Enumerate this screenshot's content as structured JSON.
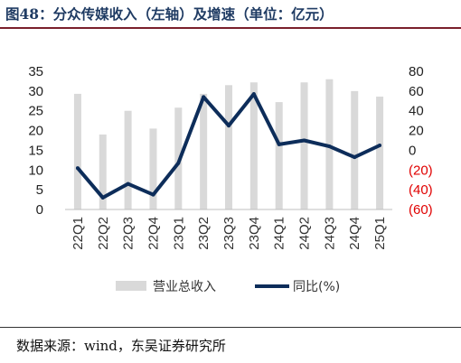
{
  "title": "图48：分众传媒收入（左轴）及增速（单位：亿元）",
  "source": "数据来源：wind，东吴证券研究所",
  "chart_data": {
    "type": "bar+line",
    "categories": [
      "22Q1",
      "22Q2",
      "22Q3",
      "22Q4",
      "23Q1",
      "23Q2",
      "23Q3",
      "23Q4",
      "24Q1",
      "24Q2",
      "24Q3",
      "24Q4",
      "25Q1"
    ],
    "series": [
      {
        "name": "营业总收入",
        "type": "bar",
        "axis": "left",
        "color": "#d9d9d9",
        "values": [
          29.3,
          19.0,
          25.0,
          20.5,
          25.8,
          29.3,
          31.5,
          32.2,
          27.2,
          32.2,
          33.0,
          30.0,
          28.6
        ]
      },
      {
        "name": "同比(%)",
        "type": "line",
        "axis": "right",
        "color": "#0d2d5a",
        "values": [
          -18,
          -48,
          -34,
          -45,
          -13,
          54,
          25,
          57,
          6,
          10,
          4,
          -7,
          5
        ]
      }
    ],
    "left_axis": {
      "min": 0,
      "max": 35,
      "ticks": [
        "0",
        "5",
        "10",
        "15",
        "20",
        "25",
        "30",
        "35"
      ]
    },
    "right_axis": {
      "min": -60,
      "max": 80,
      "ticks": [
        "(60)",
        "(40)",
        "(20)",
        "0",
        "20",
        "40",
        "60",
        "80"
      ],
      "negative_color": "#e00000"
    },
    "legend": {
      "placement": "bottom"
    },
    "grid": false
  }
}
